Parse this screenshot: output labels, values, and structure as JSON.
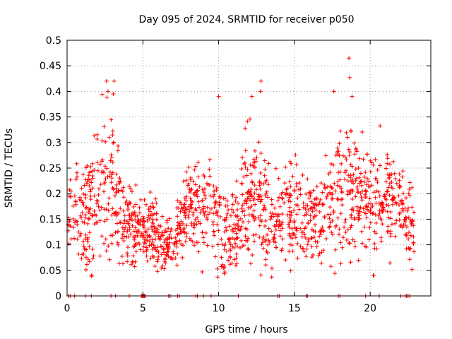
{
  "chart_data": {
    "type": "scatter",
    "title": "Day 095 of 2024, SRMTID for receiver p050",
    "xlabel": "GPS time / hours",
    "ylabel": "SRMTID / TECUs",
    "xlim": [
      0,
      24
    ],
    "ylim": [
      0,
      0.5
    ],
    "grid": true,
    "marker": "plus",
    "marker_color": "#ff0000",
    "x_ticks": [
      "0",
      "5",
      "10",
      "15",
      "20"
    ],
    "x_tick_values": [
      0,
      5,
      10,
      15,
      20
    ],
    "y_ticks": [
      "0",
      "0.05",
      "0.1",
      "0.15",
      "0.2",
      "0.25",
      "0.3",
      "0.35",
      "0.4",
      "0.45",
      "0.5"
    ],
    "y_tick_values": [
      0,
      0.05,
      0.1,
      0.15,
      0.2,
      0.25,
      0.3,
      0.35,
      0.4,
      0.45,
      0.5
    ],
    "activity_envelope": {
      "x": [
        0,
        0.5,
        1.0,
        1.5,
        2.0,
        2.5,
        3.0,
        3.5,
        4.0,
        4.5,
        5.0,
        5.5,
        6.0,
        6.5,
        7.0,
        7.5,
        8.0,
        8.5,
        9.0,
        9.5,
        10.0,
        10.5,
        11.0,
        11.5,
        12.0,
        12.5,
        13.0,
        13.5,
        14.0,
        14.5,
        15.0,
        15.5,
        16.0,
        16.5,
        17.0,
        17.5,
        18.0,
        18.5,
        19.0,
        19.5,
        20.0,
        20.5,
        21.0,
        21.5,
        22.0,
        22.5,
        22.9
      ],
      "median": [
        0.17,
        0.15,
        0.14,
        0.16,
        0.2,
        0.23,
        0.22,
        0.17,
        0.13,
        0.13,
        0.14,
        0.13,
        0.12,
        0.1,
        0.1,
        0.14,
        0.17,
        0.18,
        0.18,
        0.19,
        0.14,
        0.12,
        0.13,
        0.16,
        0.2,
        0.19,
        0.17,
        0.15,
        0.16,
        0.16,
        0.17,
        0.15,
        0.15,
        0.15,
        0.17,
        0.18,
        0.22,
        0.22,
        0.2,
        0.19,
        0.17,
        0.17,
        0.19,
        0.2,
        0.18,
        0.14,
        0.13
      ],
      "spread": [
        0.06,
        0.06,
        0.06,
        0.08,
        0.09,
        0.1,
        0.09,
        0.07,
        0.05,
        0.05,
        0.04,
        0.04,
        0.04,
        0.03,
        0.03,
        0.05,
        0.06,
        0.07,
        0.07,
        0.07,
        0.06,
        0.05,
        0.06,
        0.07,
        0.08,
        0.08,
        0.07,
        0.06,
        0.06,
        0.06,
        0.06,
        0.06,
        0.05,
        0.05,
        0.06,
        0.07,
        0.08,
        0.09,
        0.08,
        0.07,
        0.07,
        0.07,
        0.07,
        0.07,
        0.06,
        0.05,
        0.05
      ]
    },
    "peak_points": [
      {
        "x": 2.6,
        "y": 0.42
      },
      {
        "x": 2.7,
        "y": 0.4
      },
      {
        "x": 3.1,
        "y": 0.42
      },
      {
        "x": 3.05,
        "y": 0.395
      },
      {
        "x": 12.8,
        "y": 0.42
      },
      {
        "x": 12.75,
        "y": 0.4
      },
      {
        "x": 12.2,
        "y": 0.39
      },
      {
        "x": 10.0,
        "y": 0.39
      },
      {
        "x": 17.6,
        "y": 0.4
      },
      {
        "x": 18.6,
        "y": 0.465
      },
      {
        "x": 18.65,
        "y": 0.427
      },
      {
        "x": 18.8,
        "y": 0.39
      },
      {
        "x": 20.2,
        "y": 0.04
      }
    ],
    "zero_points_x": [
      0.1,
      0.2,
      0.5,
      1.2,
      1.6,
      2.9,
      3.2,
      4.1,
      4.9,
      4.95,
      5.0,
      5.05,
      5.1,
      5.15,
      6.7,
      6.8,
      7.3,
      7.4,
      8.5,
      8.6,
      9.0,
      9.5,
      11.3,
      13.9,
      14.0,
      15.8,
      15.85,
      17.9,
      18.0,
      19.7,
      20.6,
      22.0,
      22.3,
      22.4,
      22.5,
      22.6
    ]
  }
}
